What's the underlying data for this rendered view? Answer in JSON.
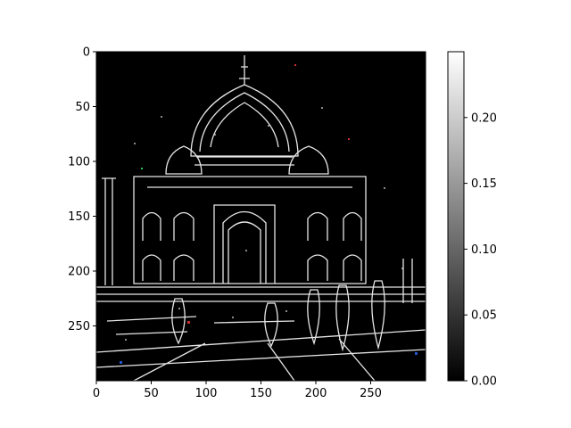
{
  "image_axes": {
    "xlim": [
      0,
      300
    ],
    "ylim": [
      300,
      0
    ],
    "xticks": [
      0,
      50,
      100,
      150,
      200,
      250
    ],
    "yticks": [
      0,
      50,
      100,
      150,
      200,
      250
    ],
    "xtick_labels": [
      "0",
      "50",
      "100",
      "150",
      "200",
      "250"
    ],
    "ytick_labels": [
      "0",
      "50",
      "100",
      "150",
      "200",
      "250"
    ],
    "content": "edge-detected photo of the Taj Mahal on black background",
    "background": "#000000",
    "edge_color": "#ffffff"
  },
  "colorbar": {
    "range": [
      0.0,
      0.25
    ],
    "ticks": [
      0.0,
      0.05,
      0.1,
      0.15,
      0.2
    ],
    "tick_labels": [
      "0.00",
      "0.05",
      "0.10",
      "0.15",
      "0.20"
    ],
    "colormap": "gray",
    "low_color": "#000000",
    "high_color": "#ffffff"
  }
}
